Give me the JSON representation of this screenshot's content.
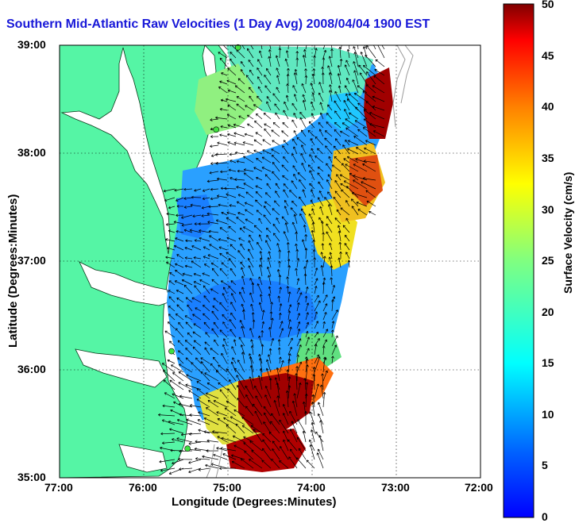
{
  "title": "Southern Mid-Atlantic Raw Velocities (1 Day Avg) 2008/04/04 1900 EST",
  "map": {
    "xlabel": "Longitude (Degrees:Minutes)",
    "ylabel": "Latitude (Degrees:Minutes)",
    "xticks": [
      "77:00",
      "76:00",
      "75:00",
      "74:00",
      "73:00",
      "72:00"
    ],
    "yticks": [
      "39:00",
      "38:00",
      "37:00",
      "36:00",
      "35:00"
    ],
    "lon_range": [
      -77,
      -72
    ],
    "lat_range": [
      35,
      39
    ],
    "land_color": "#55f5a5",
    "grid": "dotted"
  },
  "colorbar": {
    "label": "Surface Velocity (cm/s)",
    "ticks": [
      "50",
      "45",
      "40",
      "35",
      "30",
      "25",
      "20",
      "15",
      "10",
      "5",
      "0"
    ],
    "range": [
      0,
      50
    ],
    "colormap": "jet"
  },
  "stations": [
    {
      "lon": -74.88,
      "lat": 38.98
    },
    {
      "lon": -75.14,
      "lat": 38.22
    },
    {
      "lon": -75.67,
      "lat": 36.17
    },
    {
      "lon": -75.48,
      "lat": 35.27
    }
  ]
}
